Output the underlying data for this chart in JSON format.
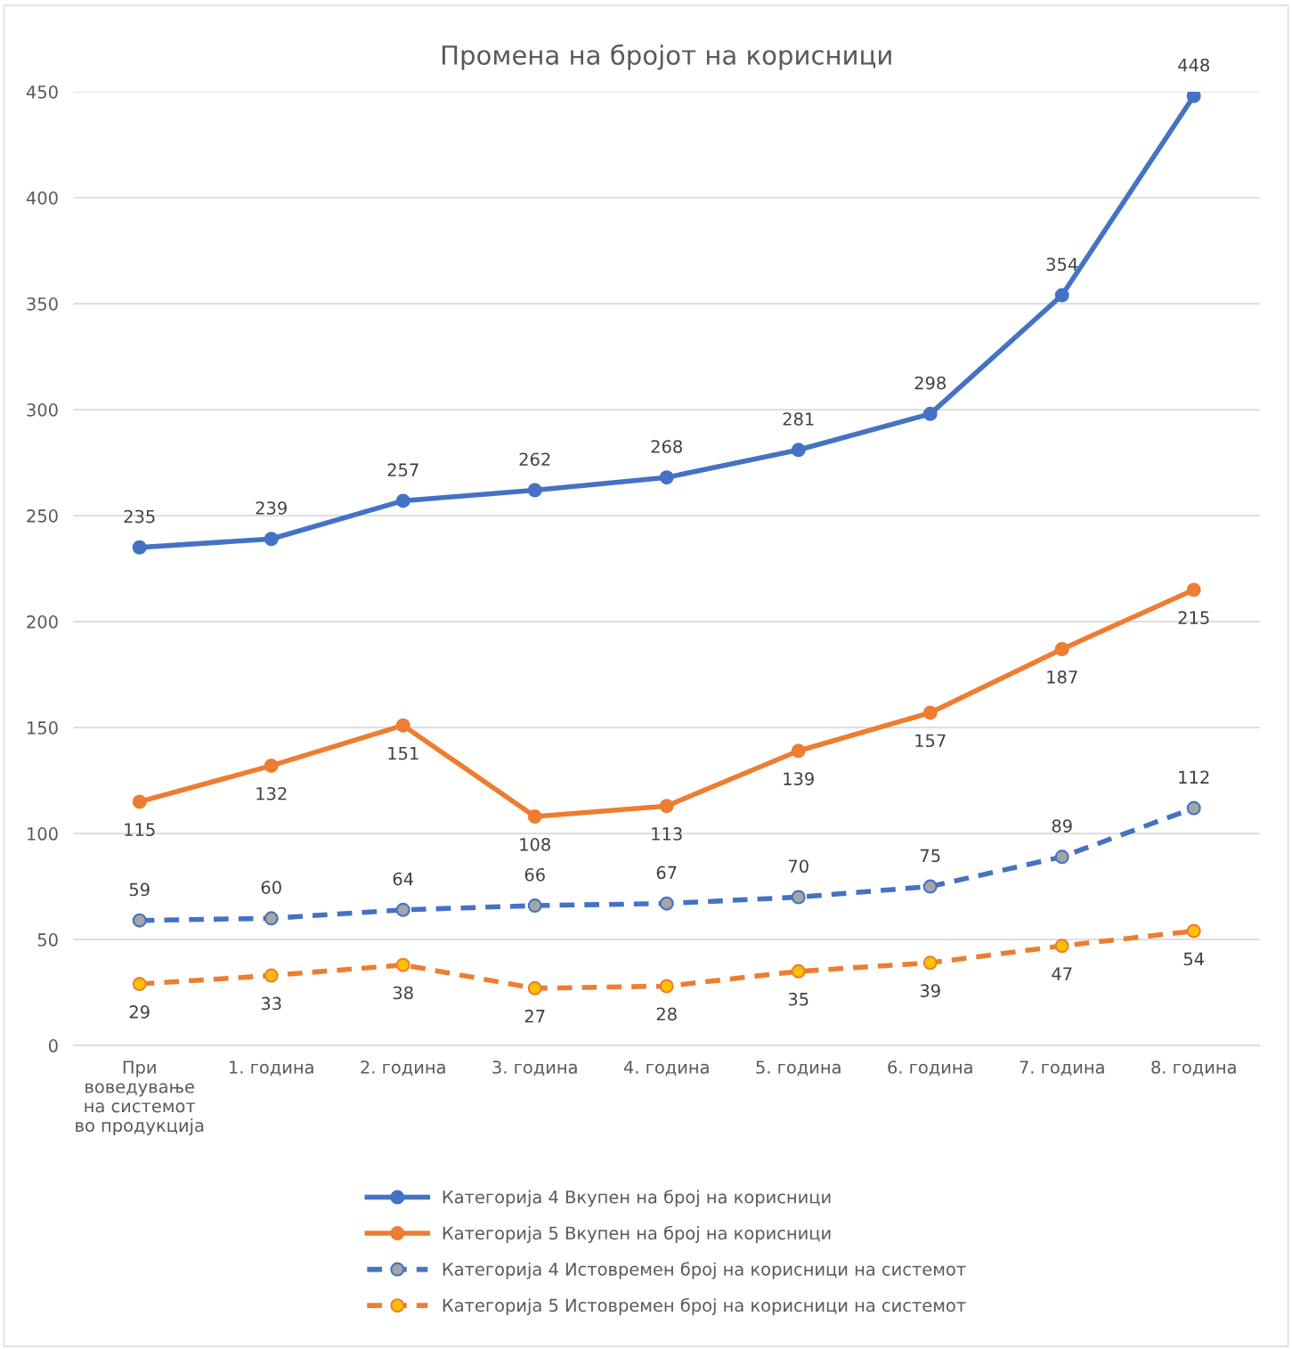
{
  "chart_data": {
    "type": "line",
    "title": "Промена на бројот на корисници",
    "categories": [
      "При\nвоведување\nна системот\nво продукција",
      "1. година",
      "2. година",
      "3. година",
      "4. година",
      "5. година",
      "6. година",
      "7. година",
      "8. година"
    ],
    "series": [
      {
        "name": "Категорија 4 Вкупен на број на корисници",
        "color": "#4472c4",
        "line_style": "solid",
        "values": [
          235,
          239,
          257,
          262,
          268,
          281,
          298,
          354,
          448
        ]
      },
      {
        "name": "Категорија 5 Вкупен на број на корисници",
        "color": "#ed7d31",
        "line_style": "solid",
        "values": [
          115,
          132,
          151,
          108,
          113,
          139,
          157,
          187,
          215
        ]
      },
      {
        "name": "Категорија 4 Истовремен број на корисници на системот",
        "color": "#4472c4",
        "line_style": "dashed",
        "colors": [
          "#a5a5a5",
          "#a5a5a5",
          "#a5a5a5",
          "#a5a5a5",
          "#a5a5a5",
          "#a5a5a5",
          "#a5a5a5",
          "#a5a5a5",
          "#a5a5a5"
        ],
        "values": [
          59,
          60,
          64,
          66,
          67,
          70,
          75,
          89,
          112
        ]
      },
      {
        "name": "Категорија 5 Истовремен број на корисници на системот",
        "color": "#ed7d31",
        "line_style": "dashed",
        "colors": [
          "#ffc000",
          "#ffc000",
          "#ffc000",
          "#ffc000",
          "#ffc000",
          "#ffc000",
          "#ffc000",
          "#ffc000",
          "#ffc000"
        ],
        "values": [
          29,
          33,
          38,
          27,
          28,
          35,
          39,
          47,
          54
        ]
      }
    ],
    "ylim": [
      0,
      450
    ],
    "yticks": [
      0,
      50,
      100,
      150,
      200,
      250,
      300,
      350,
      400,
      450
    ],
    "grid": "y",
    "legend": "bottom",
    "marker": "circle",
    "data_labels": true
  }
}
